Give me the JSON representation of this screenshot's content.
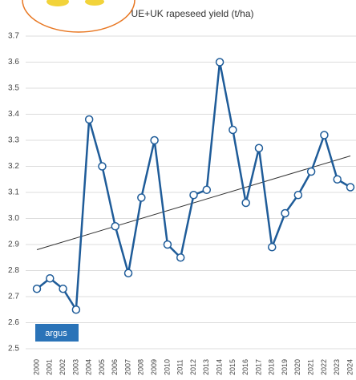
{
  "chart_data": {
    "type": "line",
    "title": "UE+UK rapeseed yield (t/ha)",
    "categories": [
      "2000",
      "2001",
      "2002",
      "2003",
      "2004",
      "2005",
      "2006",
      "2007",
      "2008",
      "2009",
      "2010",
      "2011",
      "2012",
      "2013",
      "2014",
      "2015",
      "2016",
      "2017",
      "2018",
      "2019",
      "2020",
      "2021",
      "2022",
      "2023",
      "2024"
    ],
    "series": [
      {
        "color": "#1f5c99",
        "values": [
          2.73,
          2.77,
          2.73,
          2.65,
          3.38,
          3.2,
          2.97,
          2.79,
          3.08,
          3.3,
          2.9,
          2.85,
          3.09,
          3.11,
          3.6,
          3.34,
          3.06,
          3.27,
          2.89,
          3.02,
          3.09,
          3.18,
          3.32,
          3.15,
          3.12
        ]
      }
    ],
    "trend_values": [
      2.88,
      3.24
    ],
    "trend_color": "#333333",
    "ylim": [
      2.5,
      3.7
    ],
    "yticks": [
      2.5,
      2.6,
      2.7,
      2.8,
      2.9,
      {
        "value": 3,
        "label": "3.0"
      },
      3.1,
      3.2,
      3.3,
      3.4,
      3.5,
      3.6,
      3.7
    ],
    "grid": true,
    "logo": "argus"
  }
}
